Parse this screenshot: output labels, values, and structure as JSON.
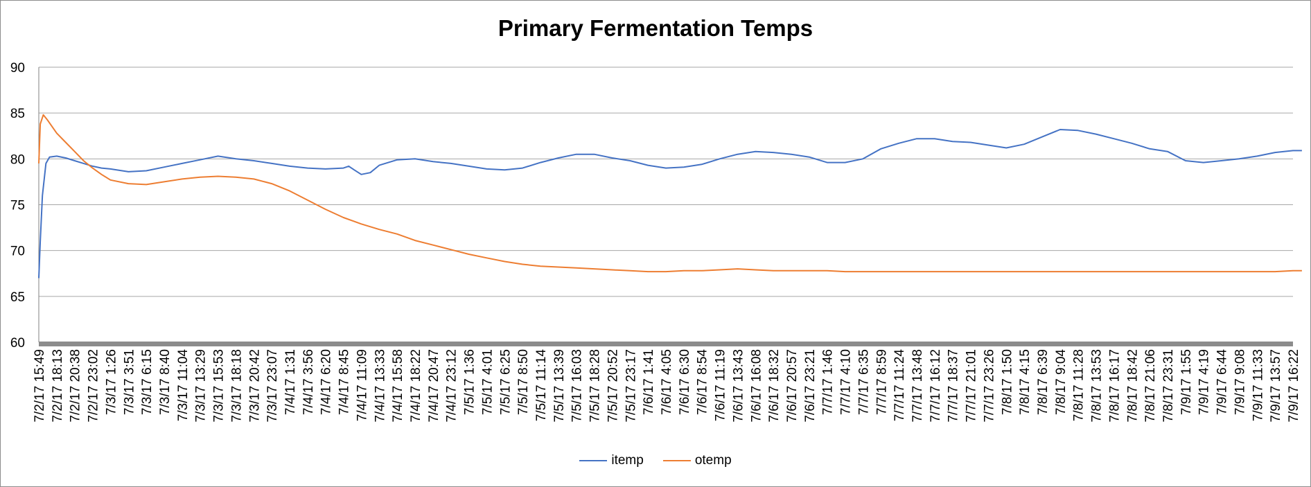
{
  "chart_data": {
    "type": "line",
    "title": "Primary Fermentation Temps",
    "xlabel": "",
    "ylabel": "",
    "ylim": [
      60,
      90
    ],
    "yticks": [
      "60",
      "65",
      "70",
      "75",
      "80",
      "85",
      "90"
    ],
    "grid": true,
    "legend_position": "bottom",
    "x_tick_labels": [
      "7/2/17 15:49",
      "7/2/17  18:13",
      "7/2/17  20:38",
      "7/2/17 23:02",
      "7/3/17  1:26",
      "7/3/17  3:51",
      "7/3/17  6:15",
      "7/3/17  8:40",
      "7/3/17 11:04",
      "7/3/17  13:29",
      "7/3/17  15:53",
      "7/3/17  18:18",
      "7/3/17  20:42",
      "7/3/17  23:07",
      "7/4/17  1:31",
      "7/4/17  3:56",
      "7/4/17  6:20",
      "7/4/17  8:45",
      "7/4/17 11:09",
      "7/4/17  13:33",
      "7/4/17  15:58",
      "7/4/17  18:22",
      "7/4/17  20:47",
      "7/4/17  23:12",
      "7/5/17  1:36",
      "7/5/17  4:01",
      "7/5/17  6:25",
      "7/5/17  8:50",
      "7/5/17 11:14",
      "7/5/17  13:39",
      "7/5/17  16:03",
      "7/5/17  18:28",
      "7/5/17  20:52",
      "7/5/17  23:17",
      "7/6/17  1:41",
      "7/6/17  4:05",
      "7/6/17  6:30",
      "7/6/17  8:54",
      "7/6/17 11:19",
      "7/6/17  13:43",
      "7/6/17  16:08",
      "7/6/17  18:32",
      "7/6/17  20:57",
      "7/6/17  23:21",
      "7/7/17  1:46",
      "7/7/17  4:10",
      "7/7/17  6:35",
      "7/7/17  8:59",
      "7/7/17 11:24",
      "7/7/17  13:48",
      "7/7/17  16:12",
      "7/7/17  18:37",
      "7/7/17  21:01",
      "7/7/17  23:26",
      "7/8/17  1:50",
      "7/8/17  4:15",
      "7/8/17  6:39",
      "7/8/17  9:04",
      "7/8/17 11:28",
      "7/8/17  13:53",
      "7/8/17  16:17",
      "7/8/17  18:42",
      "7/8/17  21:06",
      "7/8/17  23:31",
      "7/9/17  1:55",
      "7/9/17  4:19",
      "7/9/17  6:44",
      "7/9/17  9:08",
      "7/9/17 11:33",
      "7/9/17  13:57",
      "7/9/17  16:22"
    ],
    "series": [
      {
        "name": "itemp",
        "color": "#4472C4",
        "x_index": [
          0,
          0.08,
          0.2,
          0.4,
          0.6,
          1,
          1.5,
          2,
          2.5,
          3,
          3.5,
          4,
          5,
          6,
          7,
          8,
          9,
          10,
          11,
          12,
          13,
          14,
          15,
          16,
          17,
          17.3,
          17.6,
          18,
          18.5,
          19,
          20,
          21,
          22,
          23,
          24,
          25,
          26,
          27,
          28,
          29,
          30,
          31,
          32,
          33,
          34,
          35,
          36,
          37,
          38,
          39,
          40,
          41,
          42,
          43,
          44,
          45,
          46,
          47,
          48,
          49,
          50,
          51,
          52,
          53,
          54,
          55,
          56,
          57,
          58,
          59,
          60,
          61,
          62,
          63,
          64,
          65,
          66,
          67,
          68,
          69,
          70,
          70.5
        ],
        "values": [
          67,
          71,
          76,
          79.5,
          80.2,
          80.3,
          80.1,
          79.8,
          79.5,
          79.2,
          79.0,
          78.9,
          78.6,
          78.7,
          79.1,
          79.5,
          79.9,
          80.3,
          80.0,
          79.8,
          79.5,
          79.2,
          79.0,
          78.9,
          79.0,
          79.2,
          78.8,
          78.3,
          78.5,
          79.3,
          79.9,
          80.0,
          79.7,
          79.5,
          79.2,
          78.9,
          78.8,
          79.0,
          79.6,
          80.1,
          80.5,
          80.5,
          80.1,
          79.8,
          79.3,
          79.0,
          79.1,
          79.4,
          80.0,
          80.5,
          80.8,
          80.7,
          80.5,
          80.2,
          79.6,
          79.6,
          80.0,
          81.1,
          81.7,
          82.2,
          82.2,
          81.9,
          81.8,
          81.5,
          81.2,
          81.6,
          82.4,
          83.2,
          83.1,
          82.7,
          82.2,
          81.7,
          81.1,
          80.8,
          79.8,
          79.6,
          79.8,
          80.0,
          80.3,
          80.7,
          80.9,
          80.9
        ]
      },
      {
        "name": "otemp",
        "color": "#ED7D31",
        "x_index": [
          0,
          0.08,
          0.25,
          0.5,
          1,
          1.5,
          2,
          2.5,
          3,
          3.5,
          4,
          5,
          6,
          7,
          8,
          9,
          10,
          11,
          12,
          13,
          14,
          15,
          16,
          17,
          18,
          19,
          20,
          21,
          22,
          23,
          24,
          25,
          26,
          27,
          28,
          29,
          30,
          31,
          32,
          33,
          34,
          35,
          36,
          37,
          38,
          39,
          40,
          41,
          42,
          43,
          44,
          45,
          46,
          47,
          48,
          49,
          50,
          51,
          52,
          53,
          54,
          55,
          56,
          57,
          58,
          59,
          60,
          61,
          62,
          63,
          64,
          65,
          66,
          67,
          68,
          69,
          70,
          70.5
        ],
        "values": [
          79.5,
          83.8,
          84.8,
          84.2,
          82.8,
          81.8,
          80.8,
          79.8,
          79.0,
          78.3,
          77.7,
          77.3,
          77.2,
          77.5,
          77.8,
          78.0,
          78.1,
          78.0,
          77.8,
          77.3,
          76.5,
          75.5,
          74.5,
          73.6,
          72.9,
          72.3,
          71.8,
          71.1,
          70.6,
          70.1,
          69.6,
          69.2,
          68.8,
          68.5,
          68.3,
          68.2,
          68.1,
          68.0,
          67.9,
          67.8,
          67.7,
          67.7,
          67.8,
          67.8,
          67.9,
          68.0,
          67.9,
          67.8,
          67.8,
          67.8,
          67.8,
          67.7,
          67.7,
          67.7,
          67.7,
          67.7,
          67.7,
          67.7,
          67.7,
          67.7,
          67.7,
          67.7,
          67.7,
          67.7,
          67.7,
          67.7,
          67.7,
          67.7,
          67.7,
          67.7,
          67.7,
          67.7,
          67.7,
          67.7,
          67.7,
          67.7,
          67.8,
          67.8
        ]
      }
    ]
  }
}
